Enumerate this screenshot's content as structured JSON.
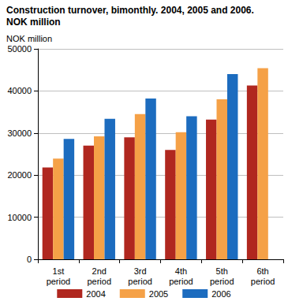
{
  "chart_data": {
    "type": "bar",
    "title": "Construction turnover, bimonthly. 2004, 2005 and 2006.",
    "subtitle": "NOK million",
    "y_label": "NOK million",
    "categories": [
      "1st period",
      "2nd period",
      "3rd period",
      "4th period",
      "5th period",
      "6th period"
    ],
    "series": [
      {
        "name": "2004",
        "color": "#b0271f",
        "values": [
          21800,
          27000,
          29000,
          26000,
          33200,
          41300
        ]
      },
      {
        "name": "2005",
        "color": "#f5a147",
        "values": [
          23900,
          29200,
          34500,
          30200,
          38000,
          45400
        ]
      },
      {
        "name": "2006",
        "color": "#1c6cbf",
        "values": [
          28600,
          33400,
          38200,
          34000,
          44000,
          null
        ]
      }
    ],
    "ylim": [
      0,
      50000
    ],
    "yticks": [
      0,
      10000,
      20000,
      30000,
      40000,
      50000
    ],
    "grid": true,
    "legend": "bottom"
  }
}
